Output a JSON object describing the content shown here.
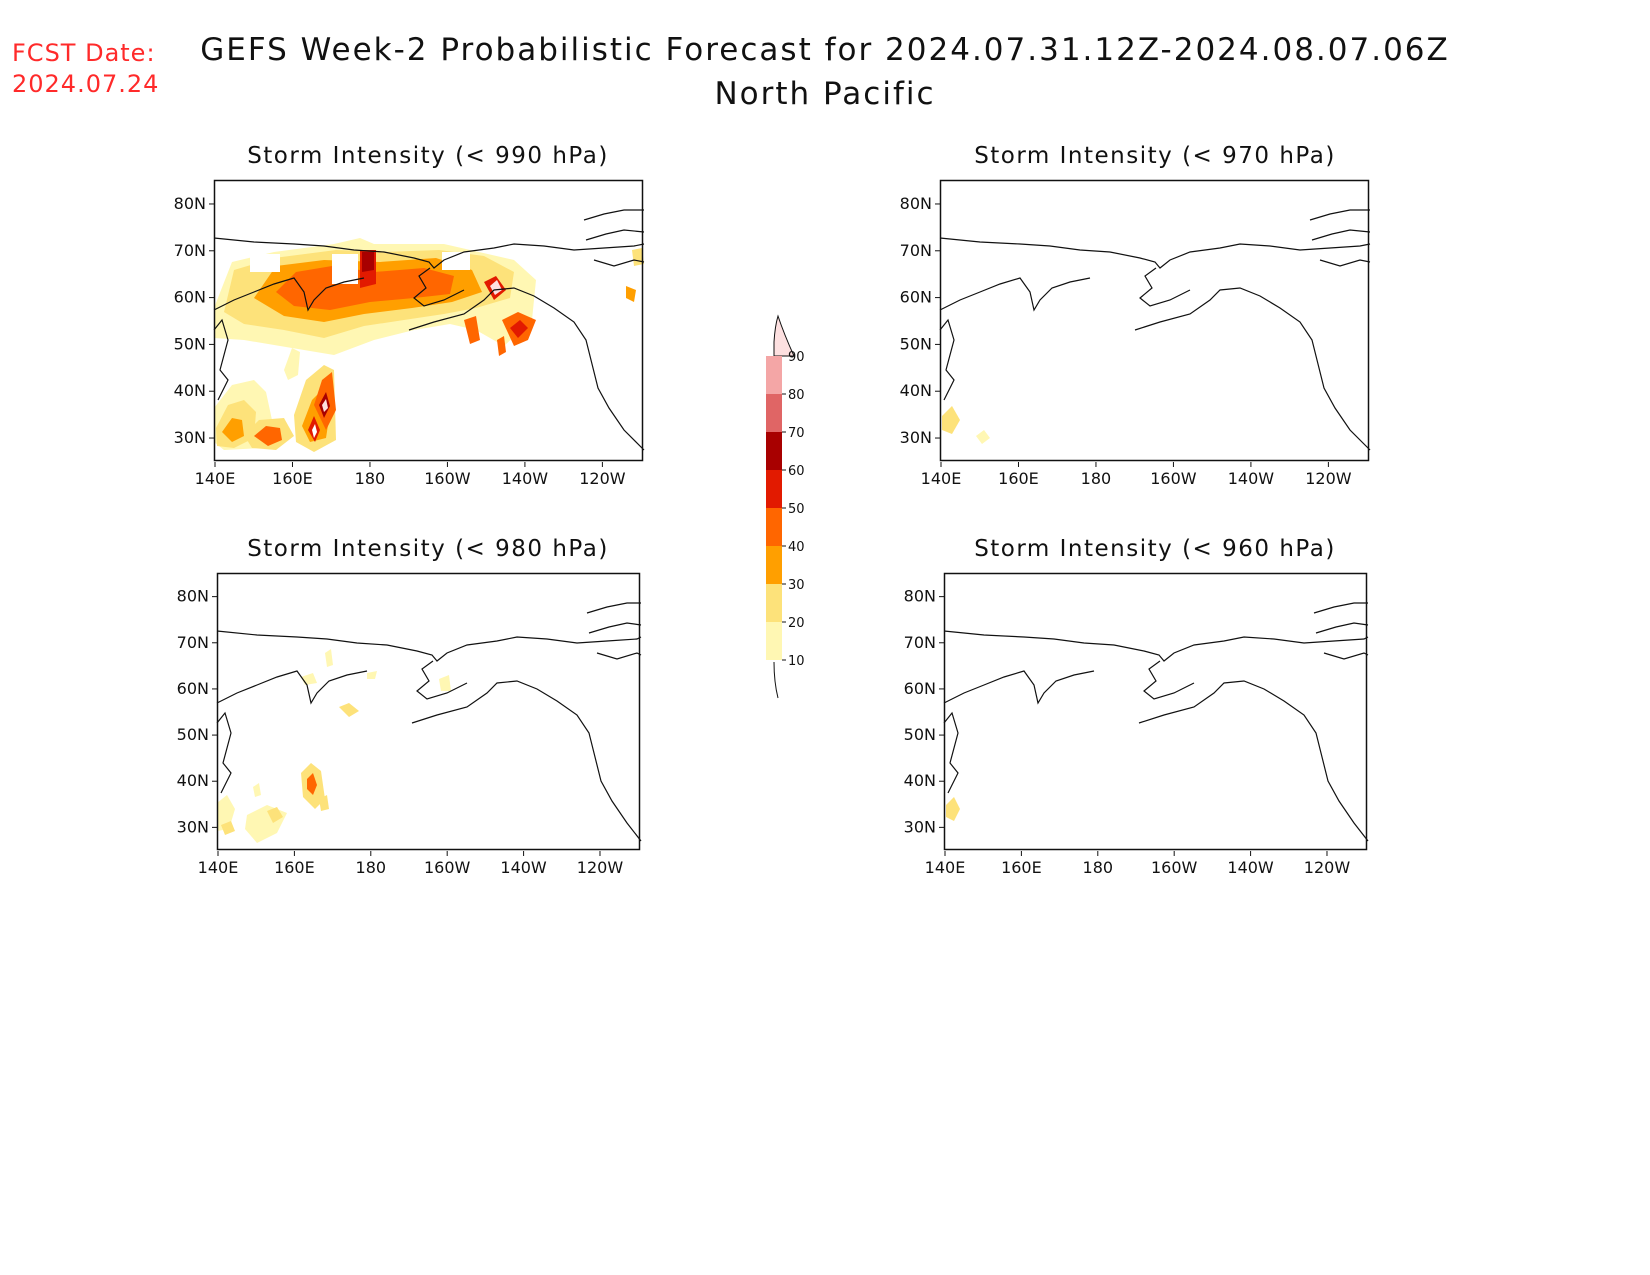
{
  "header": {
    "fcst_label": "FCST Date:",
    "fcst_date": "2024.07.24",
    "title": "GEFS Week-2 Probabilistic Forecast for 2024.07.31.12Z-2024.08.07.06Z",
    "subtitle": "North Pacific"
  },
  "axes": {
    "x_ticks": [
      "140E",
      "160E",
      "180",
      "160W",
      "140W",
      "120W"
    ],
    "y_ticks": [
      "80N",
      "70N",
      "60N",
      "50N",
      "40N",
      "30N"
    ]
  },
  "panels": [
    {
      "id": "p990",
      "title": "Storm Intensity (< 990 hPa)",
      "threshold_hPa": 990,
      "probability_areas": [
        {
          "region": "Kamchatka / Sea of Okhotsk",
          "level": "30-60"
        },
        {
          "region": "Bering Sea / Aleutians",
          "level": "40-70"
        },
        {
          "region": "Gulf of Alaska",
          "level": "40-70"
        },
        {
          "region": "NW Pacific (30-45N, 140-170E)",
          "level": "10-70"
        }
      ]
    },
    {
      "id": "p970",
      "title": "Storm Intensity (< 970 hPa)",
      "threshold_hPa": 970,
      "probability_areas": [
        {
          "region": "Off Japan (~32N, 142E)",
          "level": "10-20"
        }
      ]
    },
    {
      "id": "p980",
      "title": "Storm Intensity (< 980 hPa)",
      "threshold_hPa": 980,
      "probability_areas": [
        {
          "region": "Bering Sea",
          "level": "10-20"
        },
        {
          "region": "NW Pacific (~38N, 155E)",
          "level": "10-40"
        }
      ]
    },
    {
      "id": "p960",
      "title": "Storm Intensity (< 960 hPa)",
      "threshold_hPa": 960,
      "probability_areas": [
        {
          "region": "Off Japan (~34N, 142E)",
          "level": "10-20"
        }
      ]
    }
  ],
  "colorbar": {
    "labels": [
      "90",
      "80",
      "70",
      "60",
      "50",
      "40",
      "30",
      "20",
      "10"
    ],
    "colors": [
      "#fde0e0",
      "#f4a6a6",
      "#e06565",
      "#a80000",
      "#e21a00",
      "#ff6600",
      "#ff9f00",
      "#fde27a",
      "#fff7b3"
    ]
  }
}
